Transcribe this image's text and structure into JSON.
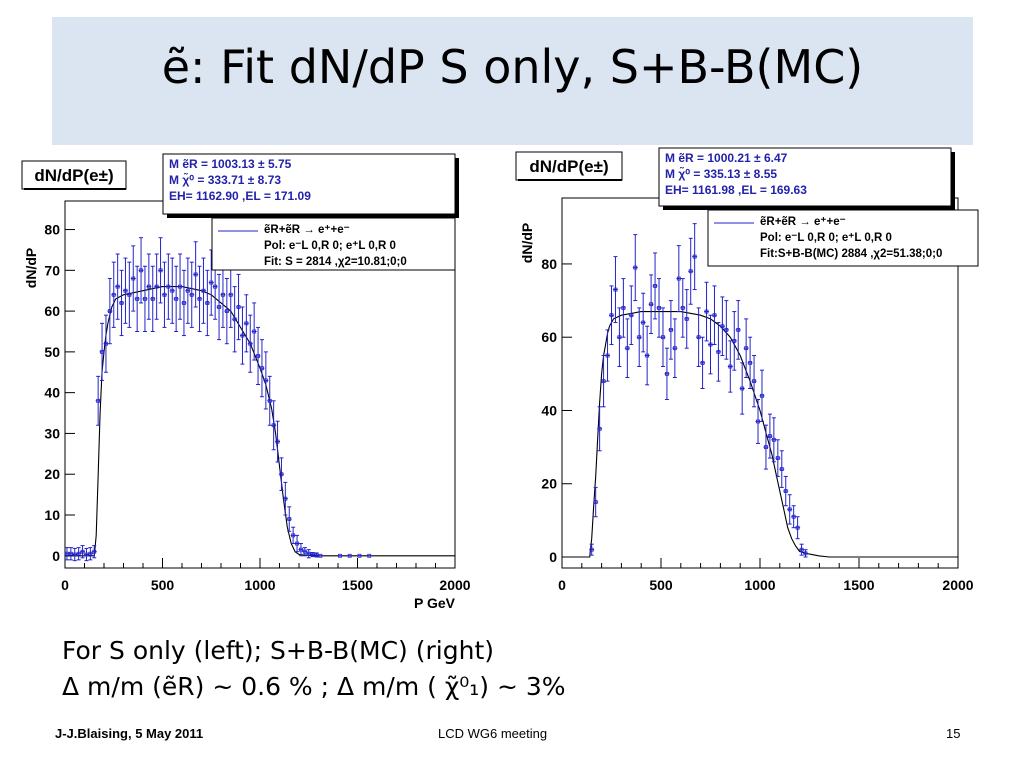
{
  "slide": {
    "title": "ẽ: Fit dN/dP S only, S+B-B(MC)",
    "caption_line1": "For S only (left); S+B-B(MC) (right)",
    "caption_line2": "Δ m/m  (ẽR) ~ 0.6 %  ; Δ m/m ( χ̃⁰₁) ~ 3%",
    "footer_left": "J-J.Blaising, 5 May 2011",
    "footer_center": "LCD WG6 meeting",
    "footer_right": "15"
  },
  "chart_data": [
    {
      "type": "histogram",
      "title": "dN/dP(e±)",
      "ylabel": "dN/dP",
      "xlabel": "P GeV",
      "xlim": [
        0,
        2000
      ],
      "ylim": [
        -3,
        87
      ],
      "xticks": [
        0,
        500,
        1000,
        1500,
        2000
      ],
      "yticks": [
        0,
        10,
        20,
        30,
        40,
        50,
        60,
        70,
        80
      ],
      "line_color": "#000000",
      "point_color": "#2222cc",
      "stats_box": [
        "M ẽR =   1003.13 ±  5.75",
        "M χ̃⁰ =    333.71 ±  8.73",
        "EH=   1162.90  ,EL =  171.09"
      ],
      "legend_box": [
        "ẽR+ẽR → e⁺+e⁻",
        "Pol: e⁻L 0,R 0; e⁺L 0,R 0",
        "Fit: S =  2814 ,χ2=10.81;0;0"
      ],
      "fit": {
        "x": [
          0,
          150,
          160,
          170,
          180,
          190,
          200,
          210,
          220,
          230,
          240,
          260,
          300,
          400,
          500,
          600,
          700,
          750,
          800,
          850,
          900,
          950,
          1000,
          1030,
          1060,
          1080,
          1100,
          1120,
          1140,
          1160,
          1180,
          1200,
          1250,
          1300,
          2000
        ],
        "y": [
          0,
          0,
          5,
          20,
          35,
          45,
          50,
          54,
          57,
          59,
          61,
          63,
          64,
          65,
          66,
          66,
          65,
          64,
          62,
          60,
          56,
          52,
          46,
          42,
          36,
          30,
          22,
          14,
          7,
          3,
          1,
          0.3,
          0.1,
          0,
          0
        ]
      },
      "points": {
        "x": [
          10,
          30,
          50,
          70,
          90,
          110,
          130,
          150,
          170,
          190,
          210,
          230,
          250,
          270,
          290,
          310,
          330,
          350,
          370,
          390,
          410,
          430,
          450,
          470,
          490,
          510,
          530,
          550,
          570,
          590,
          610,
          630,
          650,
          670,
          690,
          710,
          730,
          750,
          770,
          790,
          810,
          830,
          850,
          870,
          890,
          910,
          930,
          950,
          970,
          990,
          1010,
          1030,
          1050,
          1070,
          1090,
          1110,
          1130,
          1150,
          1170,
          1190,
          1210,
          1230,
          1250,
          1270,
          1290,
          1310,
          1410,
          1460,
          1510,
          1560
        ],
        "y": [
          0.5,
          0.5,
          0.3,
          0.5,
          1,
          0.3,
          0.5,
          1,
          38,
          50,
          52,
          60,
          64,
          66,
          62,
          65,
          64,
          68,
          63,
          70,
          63,
          66,
          63,
          66,
          70,
          64,
          66,
          65,
          63,
          66,
          62,
          65,
          64,
          69,
          63,
          65,
          62,
          67,
          66,
          61,
          64,
          60,
          64,
          58,
          61,
          54,
          57,
          52,
          55,
          49,
          46,
          43,
          38,
          32,
          28,
          20,
          14,
          9,
          5,
          3,
          1.5,
          1,
          0.5,
          0.3,
          0.2,
          0,
          0,
          0,
          0,
          0
        ],
        "err": [
          1.5,
          1.5,
          1.5,
          1.5,
          1.5,
          1.5,
          1.5,
          1.5,
          6,
          7,
          7,
          8,
          8,
          8,
          8,
          8,
          8,
          8,
          8,
          8,
          8,
          8,
          8,
          8,
          8,
          8,
          8,
          8,
          8,
          8,
          8,
          8,
          8,
          8,
          8,
          8,
          8,
          8,
          8,
          8,
          8,
          8,
          8,
          8,
          8,
          7,
          7,
          7,
          7,
          7,
          7,
          7,
          6,
          6,
          5,
          4,
          4,
          3,
          2,
          2,
          1.5,
          1,
          1,
          0.5,
          0.5,
          0,
          0,
          0,
          0,
          0
        ]
      }
    },
    {
      "type": "histogram",
      "title": "dN/dP(e±)",
      "ylabel": "dN/dP",
      "xlabel": "",
      "xlim": [
        0,
        2000
      ],
      "ylim": [
        -3,
        98
      ],
      "xticks": [
        0,
        500,
        1000,
        1500,
        2000
      ],
      "yticks": [
        0,
        20,
        40,
        60,
        80
      ],
      "line_color": "#000000",
      "point_color": "#2222cc",
      "stats_box": [
        "M ẽR =   1000.21 ±  6.47",
        "M χ̃⁰ =    335.13 ±  8.55",
        "EH=   1161.98  ,EL =  169.63"
      ],
      "legend_box": [
        "ẽR+ẽR → e⁺+e⁻",
        "Pol: e⁻L 0,R 0; e⁺L 0,R 0",
        "Fit:S+B-B(MC) 2884 ,χ2=51.38;0;0"
      ],
      "fit": {
        "x": [
          0,
          140,
          150,
          160,
          170,
          180,
          190,
          200,
          210,
          220,
          230,
          240,
          260,
          300,
          400,
          500,
          600,
          700,
          750,
          800,
          850,
          900,
          950,
          1000,
          1030,
          1060,
          1080,
          1100,
          1120,
          1140,
          1160,
          1180,
          1200,
          1250,
          1300,
          1350,
          2000
        ],
        "y": [
          0,
          0,
          5,
          14,
          22,
          32,
          42,
          50,
          55,
          58,
          61,
          63,
          65,
          66,
          67,
          67,
          67,
          66,
          65,
          63,
          60,
          55,
          48,
          40,
          34,
          28,
          23,
          18,
          13,
          8,
          5,
          3,
          1.5,
          0.8,
          0.3,
          0,
          0
        ]
      },
      "points": {
        "x": [
          150,
          170,
          190,
          210,
          230,
          250,
          270,
          290,
          310,
          330,
          350,
          370,
          390,
          410,
          430,
          450,
          470,
          490,
          510,
          530,
          550,
          570,
          590,
          610,
          630,
          650,
          670,
          690,
          710,
          730,
          750,
          770,
          790,
          810,
          830,
          850,
          870,
          890,
          910,
          930,
          950,
          970,
          990,
          1010,
          1030,
          1050,
          1070,
          1090,
          1110,
          1130,
          1150,
          1170,
          1190,
          1210,
          1230
        ],
        "y": [
          2,
          15,
          35,
          48,
          55,
          66,
          73,
          60,
          68,
          57,
          66,
          79,
          60,
          64,
          55,
          69,
          74,
          68,
          60,
          50,
          62,
          57,
          76,
          68,
          65,
          78,
          82,
          60,
          53,
          67,
          58,
          66,
          56,
          63,
          62,
          52,
          59,
          62,
          46,
          57,
          53,
          48,
          37,
          44,
          30,
          33,
          32,
          27,
          24,
          18,
          13,
          11,
          8,
          2,
          1
        ],
        "err": [
          1.5,
          4,
          6,
          7,
          7,
          8,
          9,
          8,
          8,
          8,
          8,
          9,
          8,
          8,
          8,
          8,
          9,
          8,
          8,
          7,
          8,
          8,
          9,
          8,
          8,
          9,
          9,
          8,
          7,
          8,
          8,
          8,
          8,
          8,
          8,
          7,
          8,
          8,
          7,
          8,
          7,
          7,
          6,
          7,
          6,
          6,
          6,
          5,
          5,
          4,
          4,
          3,
          3,
          1.5,
          1
        ]
      }
    }
  ]
}
